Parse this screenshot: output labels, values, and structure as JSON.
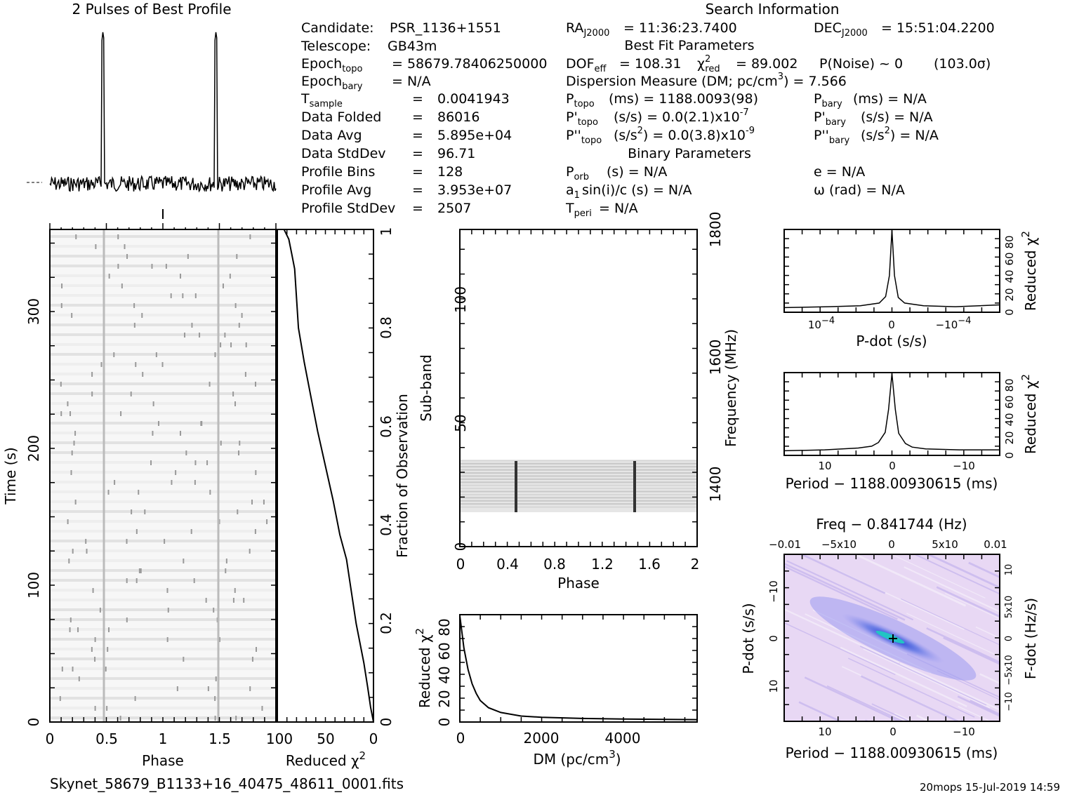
{
  "colors": {
    "ink": "#000000",
    "paper": "#ffffff",
    "pddot_bg": "#e8d8f4",
    "pddot_core": "#1030d0",
    "pddot_center": "#20c0c0"
  },
  "titles": {
    "profile": "2 Pulses of Best Profile",
    "search_info": "Search Information",
    "best_fit": "Best Fit Parameters",
    "binary": "Binary Parameters"
  },
  "candidate_info": {
    "candidate_label": "Candidate:",
    "candidate_value": "PSR_1136+1551",
    "telescope_label": "Telescope:",
    "telescope_value": "GB43m",
    "epoch_topo_label": "Epoch",
    "epoch_topo_sub": "topo",
    "epoch_topo_value": "= 58679.78406250000",
    "epoch_bary_label": "Epoch",
    "epoch_bary_sub": "bary",
    "epoch_bary_value": "= N/A",
    "tsample_label": "T",
    "tsample_sub": "sample",
    "tsample_eq": "=",
    "tsample_value": "0.0041943",
    "folded_label": "Data Folded",
    "folded_eq": "=",
    "folded_value": "86016",
    "avg_label": "Data Avg",
    "avg_eq": "=",
    "avg_value": "5.895e+04",
    "std_label": "Data StdDev",
    "std_eq": "=",
    "std_value": "96.71",
    "bins_label": "Profile Bins",
    "bins_eq": "=",
    "bins_value": "128",
    "pavg_label": "Profile Avg",
    "pavg_eq": "=",
    "pavg_value": "3.953e+07",
    "pstd_label": "Profile StdDev",
    "pstd_eq": "=",
    "pstd_value": "2507"
  },
  "search_info": {
    "ra_label": "RA",
    "ra_sub": "J2000",
    "ra_value": "= 11:36:23.7400",
    "dec_label": "DEC",
    "dec_sub": "J2000",
    "dec_value": "= 15:51:04.2200",
    "dof_label": "DOF",
    "dof_sub": "eff",
    "dof_value": "= 108.31",
    "chi_label": "χ",
    "chi_sup": "2",
    "chi_sub": "red",
    "chi_value": "= 89.002",
    "pnoise": "P(Noise) ~ 0",
    "sigma": "(103.0σ)",
    "dm_text": "Dispersion Measure (DM; pc/cm",
    "dm_sup": "3",
    "dm_value": ") = 7.566",
    "ptopo_label": "P",
    "ptopo_sub": "topo",
    "ptopo_value": "(ms) =  1188.0093(98)",
    "pbary_label": "P",
    "pbary_sub": "bary",
    "pbary_value": "(ms) = N/A",
    "pdtopo_label": "P'",
    "pdtopo_sub": "topo",
    "pdtopo_value": "(s/s) = 0.0(2.1)x10",
    "pdtopo_exp": "-7",
    "pdbary_label": "P'",
    "pdbary_sub": "bary",
    "pdbary_value": "(s/s) = N/A",
    "pddtopo_label": "P''",
    "pddtopo_sub": "topo",
    "pddtopo_value": "(s/s",
    "pddtopo_unitsup": "2",
    "pddtopo_value2": ") = 0.0(3.8)x10",
    "pddtopo_exp": "-9",
    "pddbary_label": "P''",
    "pddbary_sub": "bary",
    "pddbary_value": "(s/s",
    "pddbary_unitsup": "2",
    "pddbary_value2": ") = N/A",
    "porb_label": "P",
    "porb_sub": "orb",
    "porb_value": "(s) = N/A",
    "e_text": "e = N/A",
    "a1_label": "a",
    "a1_sub": "1",
    "a1_value": "sin(i)/c (s) = N/A",
    "omega_text": "ω (rad) = N/A",
    "tperi_label": "T",
    "tperi_sub": "peri",
    "tperi_value": "= N/A"
  },
  "footer": {
    "filename": "Skynet_58679_B1133+16_40475_48611_0001.fits",
    "stamp": "20mops  15-Jul-2019 14:59"
  },
  "chart_data": [
    {
      "id": "profile",
      "type": "line",
      "title": "2 Pulses of Best Profile",
      "x_range": [
        0,
        2
      ],
      "pulses": [
        0.47,
        1.47
      ],
      "xlabel": "",
      "ylabel": ""
    },
    {
      "id": "time_phase",
      "type": "heatmap",
      "xlabel": "Phase",
      "ylabel": "Time (s)",
      "xlim": [
        0,
        2
      ],
      "ylim": [
        0,
        360
      ],
      "x_ticks": [
        "0",
        "0.5",
        "1",
        "1.5"
      ],
      "y_ticks": [
        "0",
        "100",
        "200",
        "300"
      ]
    },
    {
      "id": "time_chi2",
      "type": "line",
      "xlabel": "Reduced χ",
      "xlabel_sup": "2",
      "ylabel": "Fraction of Observation",
      "xlim": [
        100,
        0
      ],
      "ylim": [
        0,
        1
      ],
      "x_ticks": [
        "100",
        "50",
        "0"
      ],
      "y_ticks": [
        "0",
        "0.2",
        "0.4",
        "0.6",
        "0.8",
        "1"
      ],
      "x": [
        0,
        3,
        6,
        10,
        18,
        25,
        28,
        35,
        42,
        50,
        58,
        65,
        72,
        78,
        80,
        82,
        85,
        88,
        93
      ],
      "y": [
        0.0,
        0.03,
        0.07,
        0.12,
        0.2,
        0.29,
        0.33,
        0.38,
        0.45,
        0.52,
        0.59,
        0.66,
        0.73,
        0.8,
        0.86,
        0.92,
        0.95,
        0.98,
        1.0
      ]
    },
    {
      "id": "subband_phase",
      "type": "heatmap",
      "xlabel": "Phase",
      "ylabel": "Sub-band",
      "ylabel_right": "Frequency (MHz)",
      "xlim": [
        0,
        2
      ],
      "ylim": [
        0,
        128
      ],
      "x_ticks": [
        "0",
        "0.4",
        "0.8",
        "1.2",
        "1.6",
        "2"
      ],
      "y_ticks": [
        "0",
        "50",
        "100"
      ],
      "y_right_ticks": [
        "1400",
        "1600",
        "1800"
      ],
      "band_range": [
        15,
        35
      ],
      "pulses": [
        0.47,
        1.47
      ]
    },
    {
      "id": "dm_chi2",
      "type": "line",
      "xlabel": "DM (pc/cm",
      "xlabel_sup": "3",
      "xlabel_end": ")",
      "ylabel": "Reduced χ",
      "ylabel_sup": "2",
      "xlim": [
        0,
        5800
      ],
      "ylim": [
        0,
        90
      ],
      "x_ticks": [
        "0",
        "2000",
        "4000"
      ],
      "y_ticks": [
        "0",
        "20",
        "40",
        "60",
        "80"
      ],
      "x": [
        0,
        100,
        200,
        300,
        400,
        500,
        700,
        1000,
        1500,
        2000,
        3000,
        4000,
        5000,
        5800
      ],
      "y": [
        89,
        62,
        44,
        32,
        24,
        18,
        12,
        8,
        5,
        4,
        3,
        2.5,
        2.2,
        2.0
      ]
    },
    {
      "id": "pdot_chi2",
      "type": "line",
      "xlabel": "P-dot (s/s)",
      "ylabel": "Reduced χ",
      "ylabel_sup": "2",
      "xlim": [
        0.00017,
        -0.00017
      ],
      "ylim": [
        0,
        90
      ],
      "x_ticks": [
        "10",
        "0",
        "−10"
      ],
      "x_tick_exp": "−4",
      "y_ticks": [
        "0",
        "20",
        "40",
        "60",
        "80"
      ],
      "x": [
        0.00017,
        0.0001,
        5e-05,
        2e-05,
        1e-05,
        4e-06,
        0,
        -4e-06,
        -1e-05,
        -2e-05,
        -5e-05,
        -0.0001,
        -0.00017
      ],
      "y": [
        5,
        6,
        7,
        10,
        17,
        40,
        89,
        40,
        16,
        10,
        7,
        6,
        8
      ]
    },
    {
      "id": "period_chi2",
      "type": "line",
      "xlabel": "Period − 1188.00930615 (ms)",
      "ylabel": "Reduced χ",
      "ylabel_sup": "2",
      "xlim": [
        16,
        -16
      ],
      "ylim": [
        0,
        90
      ],
      "x_ticks": [
        "10",
        "0",
        "−10"
      ],
      "y_ticks": [
        "0",
        "20",
        "40",
        "60",
        "80"
      ],
      "x": [
        16,
        10,
        5,
        3,
        2,
        1,
        0.5,
        0,
        -0.5,
        -1,
        -2,
        -3,
        -5,
        -10,
        -16
      ],
      "y": [
        5,
        6,
        8,
        10,
        14,
        25,
        50,
        89,
        50,
        24,
        13,
        9,
        7,
        6,
        6
      ]
    },
    {
      "id": "p_pdot",
      "type": "heatmap",
      "title": "Freq − 0.841744 (Hz)",
      "xlabel": "Period − 1188.00930615 (ms)",
      "ylabel": "P-dot (s/s)",
      "ylabel_right": "F-dot (Hz/s)",
      "x_ticks": [
        "10",
        "0",
        "−10"
      ],
      "top_ticks": [
        "−0.01",
        "−5x10",
        "0",
        "5x10",
        "0.01"
      ],
      "y_ticks": [
        "−10",
        "0",
        "10"
      ],
      "right_ticks": [
        "−10",
        "−5x10",
        "0",
        "5x10",
        "10"
      ]
    }
  ]
}
